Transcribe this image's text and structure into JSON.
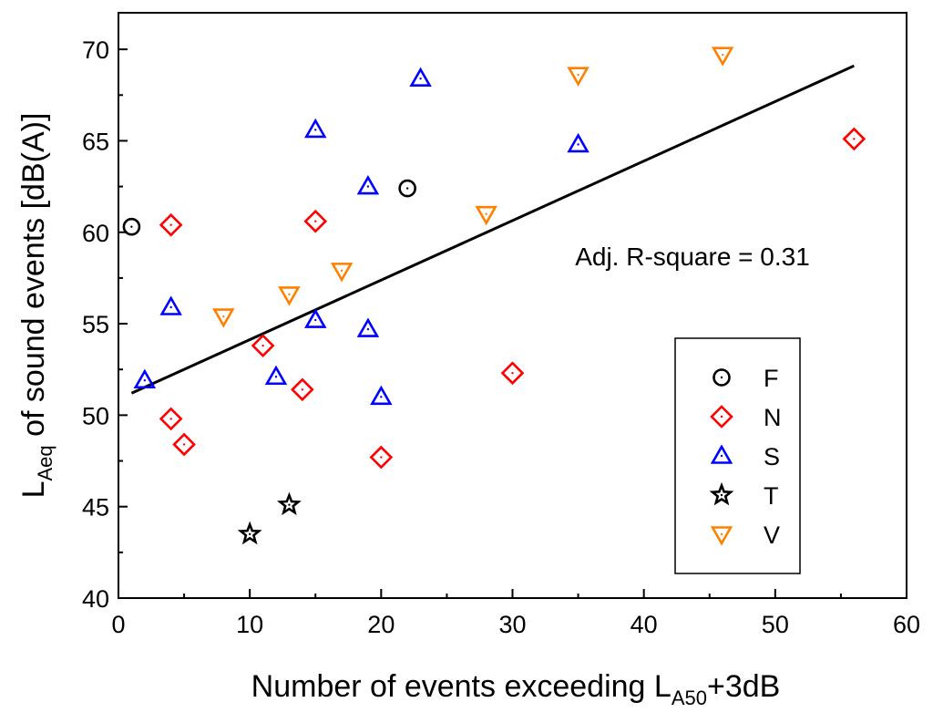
{
  "chart_data": {
    "type": "scatter",
    "title": "",
    "xlabel": {
      "main": "Number of events exceeding L",
      "sub": "A50",
      "suffix": "+3dB"
    },
    "ylabel": {
      "main": "L",
      "sub": "Aeq",
      "suffix": " of sound events [dB(A)]"
    },
    "xlim": [
      0,
      60
    ],
    "ylim": [
      40,
      72
    ],
    "x_ticks": [
      0,
      10,
      20,
      30,
      40,
      50,
      60
    ],
    "y_ticks": [
      40,
      45,
      50,
      55,
      60,
      65,
      70
    ],
    "grid": false,
    "legend_position": "bottom-right",
    "series": [
      {
        "name": "F",
        "marker": "circle",
        "color": "#000000",
        "points": [
          [
            1,
            60.3
          ],
          [
            22,
            62.4
          ]
        ]
      },
      {
        "name": "N",
        "marker": "diamond",
        "color": "#ff0000",
        "points": [
          [
            4,
            60.4
          ],
          [
            4,
            49.8
          ],
          [
            5,
            48.4
          ],
          [
            11,
            53.8
          ],
          [
            14,
            51.4
          ],
          [
            15,
            60.6
          ],
          [
            20,
            47.7
          ],
          [
            30,
            52.3
          ],
          [
            56,
            65.1
          ]
        ]
      },
      {
        "name": "S",
        "marker": "triangle-up",
        "color": "#0000ff",
        "points": [
          [
            2,
            51.9
          ],
          [
            4,
            55.9
          ],
          [
            12,
            52.1
          ],
          [
            15,
            65.6
          ],
          [
            15,
            55.2
          ],
          [
            19,
            62.5
          ],
          [
            19,
            54.7
          ],
          [
            20,
            51.0
          ],
          [
            23,
            68.4
          ],
          [
            35,
            64.8
          ]
        ]
      },
      {
        "name": "T",
        "marker": "star",
        "color": "#000000",
        "points": [
          [
            10,
            43.5
          ],
          [
            13,
            45.1
          ]
        ]
      },
      {
        "name": "V",
        "marker": "triangle-down",
        "color": "#ff8000",
        "points": [
          [
            8,
            55.4
          ],
          [
            13,
            56.6
          ],
          [
            17,
            57.9
          ],
          [
            28,
            61.0
          ],
          [
            35,
            68.6
          ],
          [
            46,
            69.7
          ]
        ]
      }
    ],
    "fit_line": {
      "x": [
        1,
        56
      ],
      "y": [
        51.2,
        69.1
      ],
      "color": "#000000"
    },
    "annotations": [
      {
        "text": "Adj. R-square = 0.31",
        "x": 43.7,
        "y": 58.2
      }
    ]
  }
}
